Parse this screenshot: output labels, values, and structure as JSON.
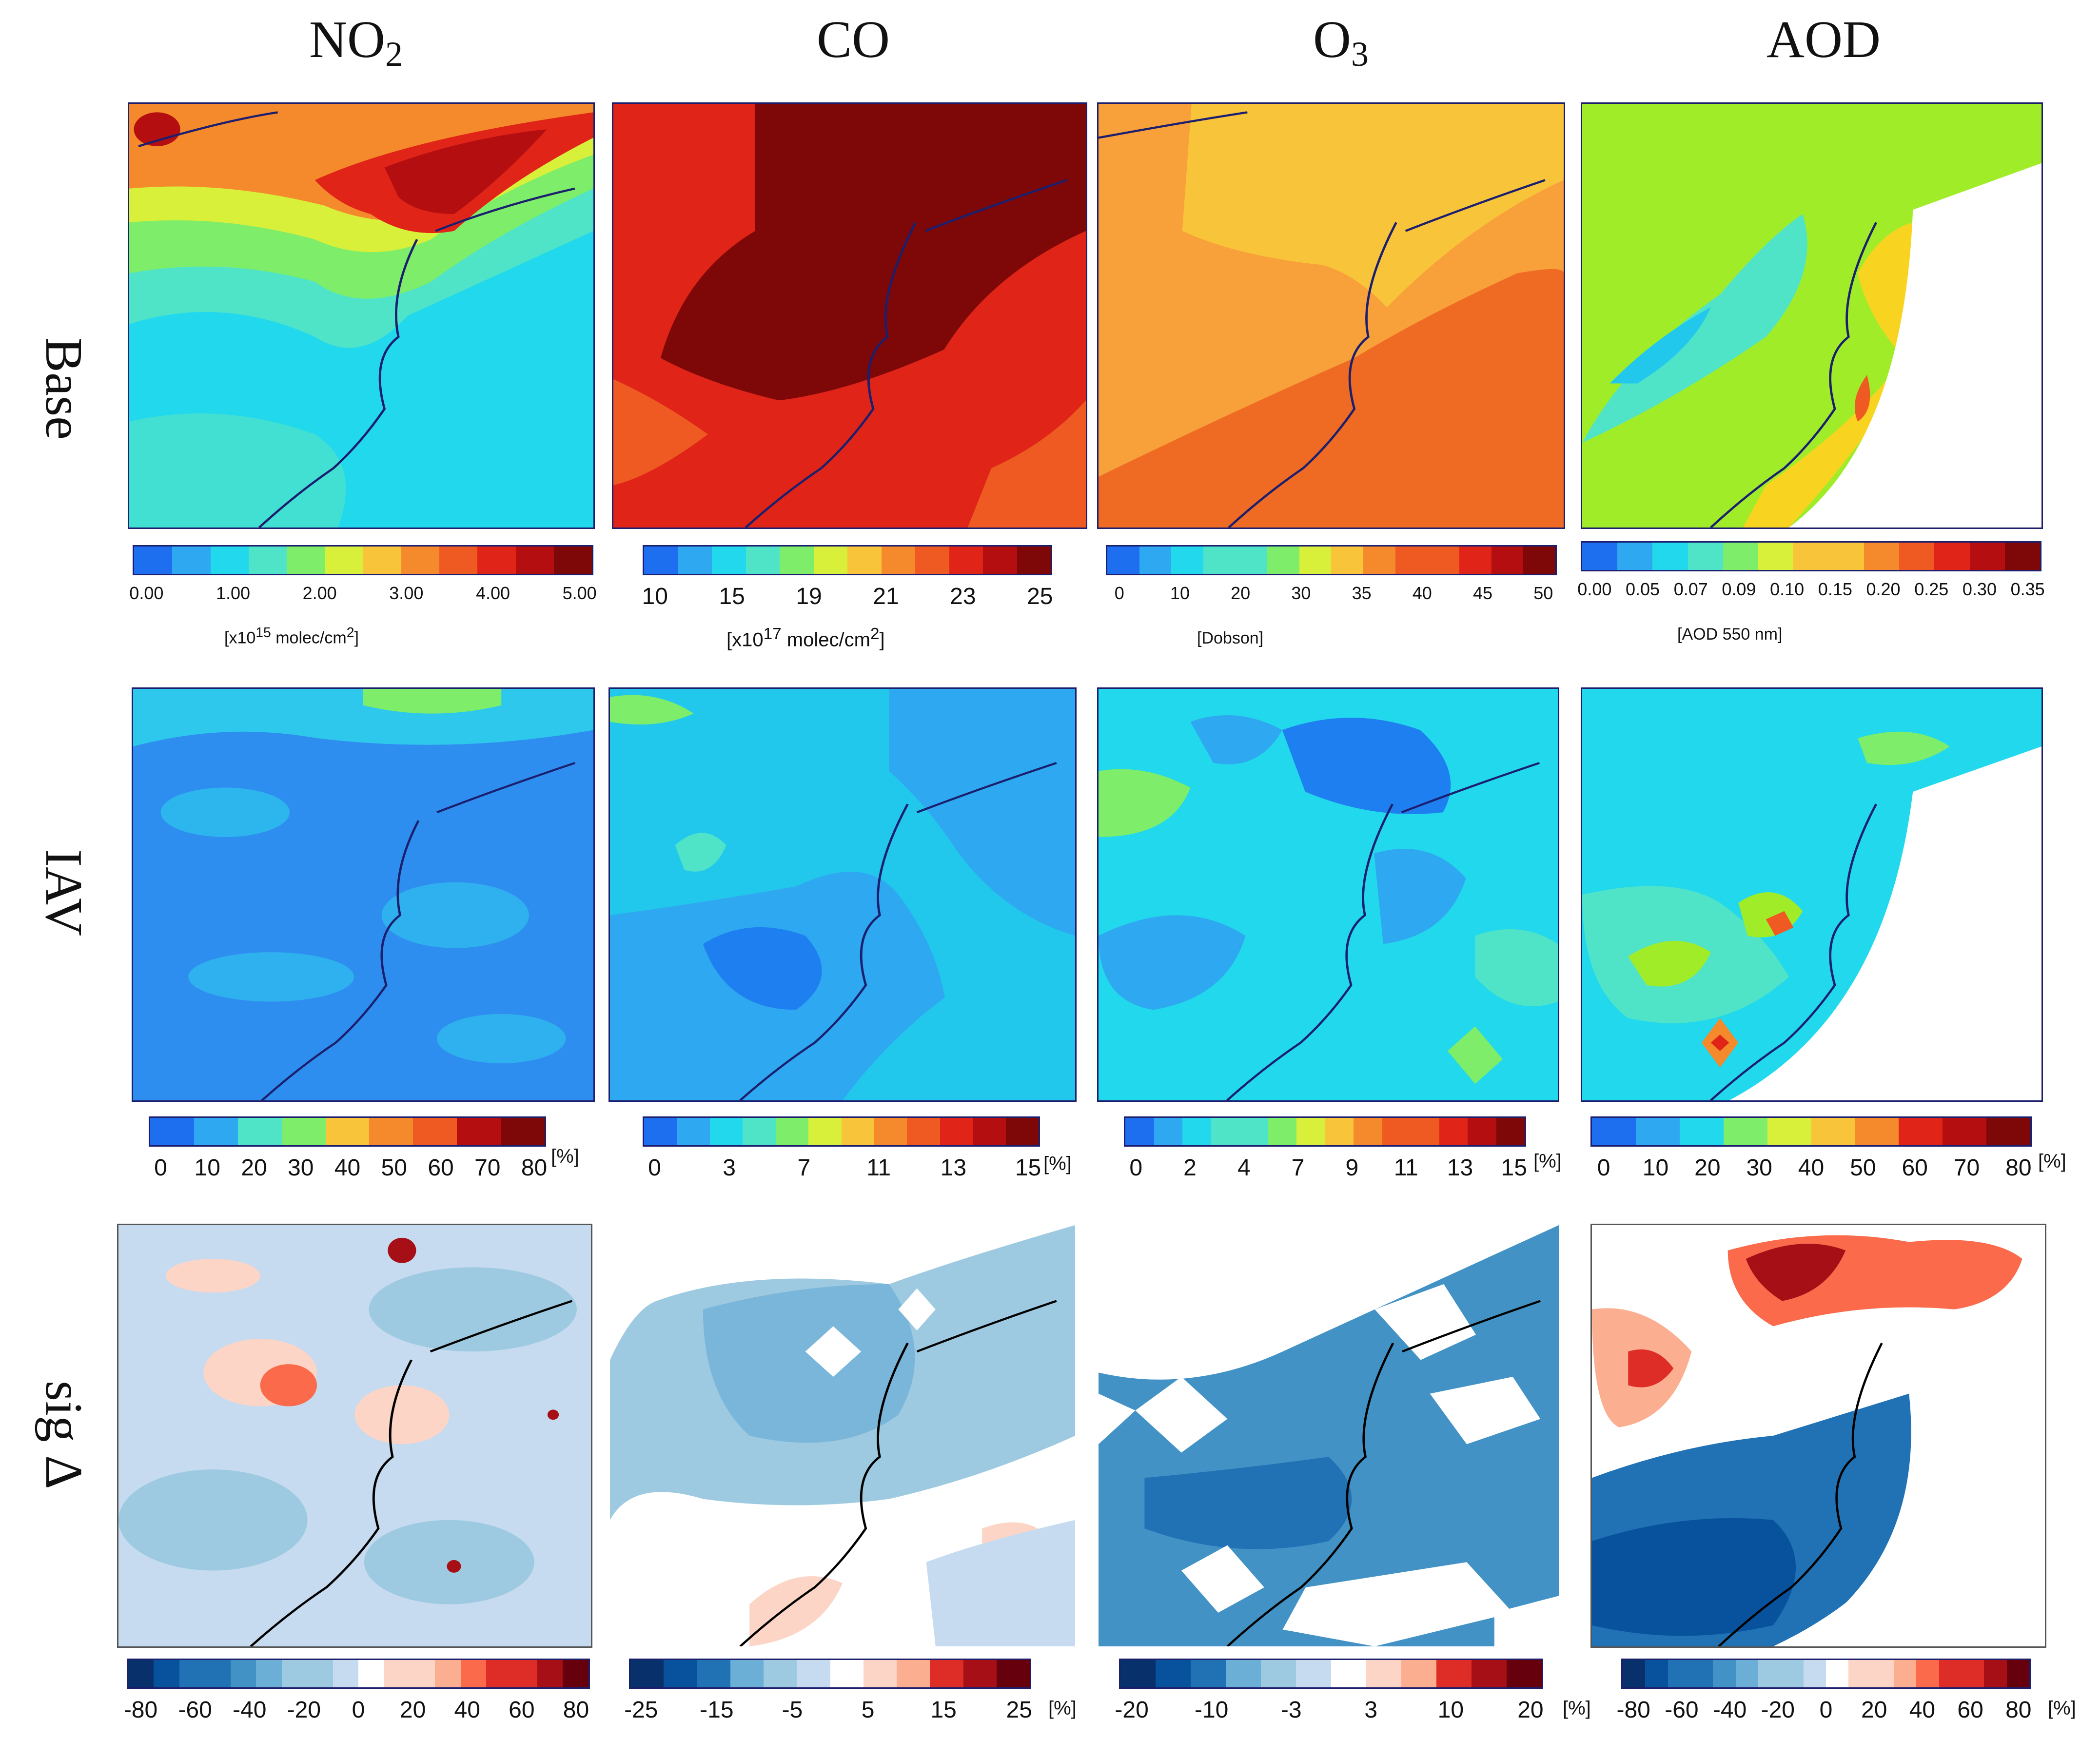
{
  "columns": [
    {
      "label": "NO",
      "sub": "2"
    },
    {
      "label": "CO",
      "sub": ""
    },
    {
      "label": "O",
      "sub": "3"
    },
    {
      "label": "AOD",
      "sub": ""
    }
  ],
  "rows": [
    "Base",
    "IAV",
    "sig Δ"
  ],
  "colorbars": {
    "base": [
      {
        "ticks": [
          "0.00",
          "1.00",
          "2.00",
          "3.00",
          "4.00",
          "5.00"
        ],
        "unit_prefix": "[x10",
        "unit_sup": "15",
        "unit_suffix": " molec/cm",
        "unit_sup2": "2",
        "unit_end": "]"
      },
      {
        "ticks": [
          "10",
          "15",
          "19",
          "21",
          "23",
          "25"
        ],
        "unit_prefix": "[x10",
        "unit_sup": "17",
        "unit_suffix": " molec/cm",
        "unit_sup2": "2",
        "unit_end": "]"
      },
      {
        "ticks": [
          "0",
          "10",
          "20",
          "30",
          "35",
          "40",
          "45",
          "50"
        ],
        "unit_prefix": "[Dobson]",
        "unit_sup": "",
        "unit_suffix": "",
        "unit_sup2": "",
        "unit_end": ""
      },
      {
        "ticks": [
          "0.00",
          "0.05",
          "0.07",
          "0.09",
          "0.10",
          "0.15",
          "0.20",
          "0.25",
          "0.30",
          "0.35"
        ],
        "unit_prefix": "[AOD 550 nm]",
        "unit_sup": "",
        "unit_suffix": "",
        "unit_sup2": "",
        "unit_end": ""
      }
    ],
    "iav": [
      {
        "ticks": [
          "0",
          "10",
          "20",
          "30",
          "40",
          "50",
          "60",
          "70",
          "80"
        ],
        "unit": "[%]"
      },
      {
        "ticks": [
          "0",
          "3",
          "7",
          "11",
          "13",
          "15"
        ],
        "unit": "[%]"
      },
      {
        "ticks": [
          "0",
          "2",
          "4",
          "7",
          "9",
          "11",
          "13",
          "15"
        ],
        "unit": "[%]"
      },
      {
        "ticks": [
          "0",
          "10",
          "20",
          "30",
          "40",
          "50",
          "60",
          "70",
          "80"
        ],
        "unit": "[%]"
      }
    ],
    "sig": [
      {
        "ticks": [
          "-80",
          "-60",
          "-40",
          "-20",
          "0",
          "20",
          "40",
          "60",
          "80"
        ],
        "unit": ""
      },
      {
        "ticks": [
          "-25",
          "-15",
          "-5",
          "5",
          "15",
          "25"
        ],
        "unit": "[%]"
      },
      {
        "ticks": [
          "-20",
          "-10",
          "-3",
          "3",
          "10",
          "20"
        ],
        "unit": "[%]"
      },
      {
        "ticks": [
          "-80",
          "-60",
          "-40",
          "-20",
          "0",
          "20",
          "40",
          "60",
          "80"
        ],
        "unit": "[%]"
      }
    ]
  },
  "palettes": {
    "rainbow": [
      "#1e6ef0",
      "#2ea8f0",
      "#22d8ec",
      "#4fe4c8",
      "#7ded6a",
      "#d8f03a",
      "#f8c43a",
      "#f58a2c",
      "#ef5a22",
      "#e02418",
      "#b40e10",
      "#7e0808"
    ],
    "diverging": [
      "#08306b",
      "#08519c",
      "#2171b5",
      "#4292c6",
      "#6baed6",
      "#9ecae1",
      "#c6dbef",
      "#ffffff",
      "#fcd5c6",
      "#fcae91",
      "#fb6a4a",
      "#de2d26",
      "#a50f15",
      "#67000d"
    ]
  },
  "chart_data": [
    {
      "type": "heatmap",
      "title": "NO2 Base",
      "colorbar_ticks": [
        0,
        1,
        2,
        3,
        4,
        5
      ],
      "units": "x10^15 molec/cm^2"
    },
    {
      "type": "heatmap",
      "title": "CO Base",
      "colorbar_ticks": [
        10,
        15,
        19,
        21,
        23,
        25
      ],
      "units": "x10^17 molec/cm^2"
    },
    {
      "type": "heatmap",
      "title": "O3 Base",
      "colorbar_ticks": [
        0,
        10,
        20,
        30,
        35,
        40,
        45,
        50
      ],
      "units": "Dobson"
    },
    {
      "type": "heatmap",
      "title": "AOD Base",
      "colorbar_ticks": [
        0.0,
        0.05,
        0.07,
        0.09,
        0.1,
        0.15,
        0.2,
        0.25,
        0.3,
        0.35
      ],
      "units": "AOD 550 nm"
    },
    {
      "type": "heatmap",
      "title": "NO2 IAV",
      "colorbar_ticks": [
        0,
        10,
        20,
        30,
        40,
        50,
        60,
        70,
        80
      ],
      "units": "%"
    },
    {
      "type": "heatmap",
      "title": "CO IAV",
      "colorbar_ticks": [
        0,
        3,
        7,
        11,
        13,
        15
      ],
      "units": "%"
    },
    {
      "type": "heatmap",
      "title": "O3 IAV",
      "colorbar_ticks": [
        0,
        2,
        4,
        7,
        9,
        11,
        13,
        15
      ],
      "units": "%"
    },
    {
      "type": "heatmap",
      "title": "AOD IAV",
      "colorbar_ticks": [
        0,
        10,
        20,
        30,
        40,
        50,
        60,
        70,
        80
      ],
      "units": "%"
    },
    {
      "type": "heatmap",
      "title": "NO2 sig delta",
      "colorbar_ticks": [
        -80,
        -60,
        -40,
        -20,
        0,
        20,
        40,
        60,
        80
      ],
      "units": "%"
    },
    {
      "type": "heatmap",
      "title": "CO sig delta",
      "colorbar_ticks": [
        -25,
        -15,
        -5,
        5,
        15,
        25
      ],
      "units": "%"
    },
    {
      "type": "heatmap",
      "title": "O3 sig delta",
      "colorbar_ticks": [
        -20,
        -10,
        -3,
        3,
        10,
        20
      ],
      "units": "%"
    },
    {
      "type": "heatmap",
      "title": "AOD sig delta",
      "colorbar_ticks": [
        -80,
        -60,
        -40,
        -20,
        0,
        20,
        40,
        60,
        80
      ],
      "units": "%"
    }
  ]
}
